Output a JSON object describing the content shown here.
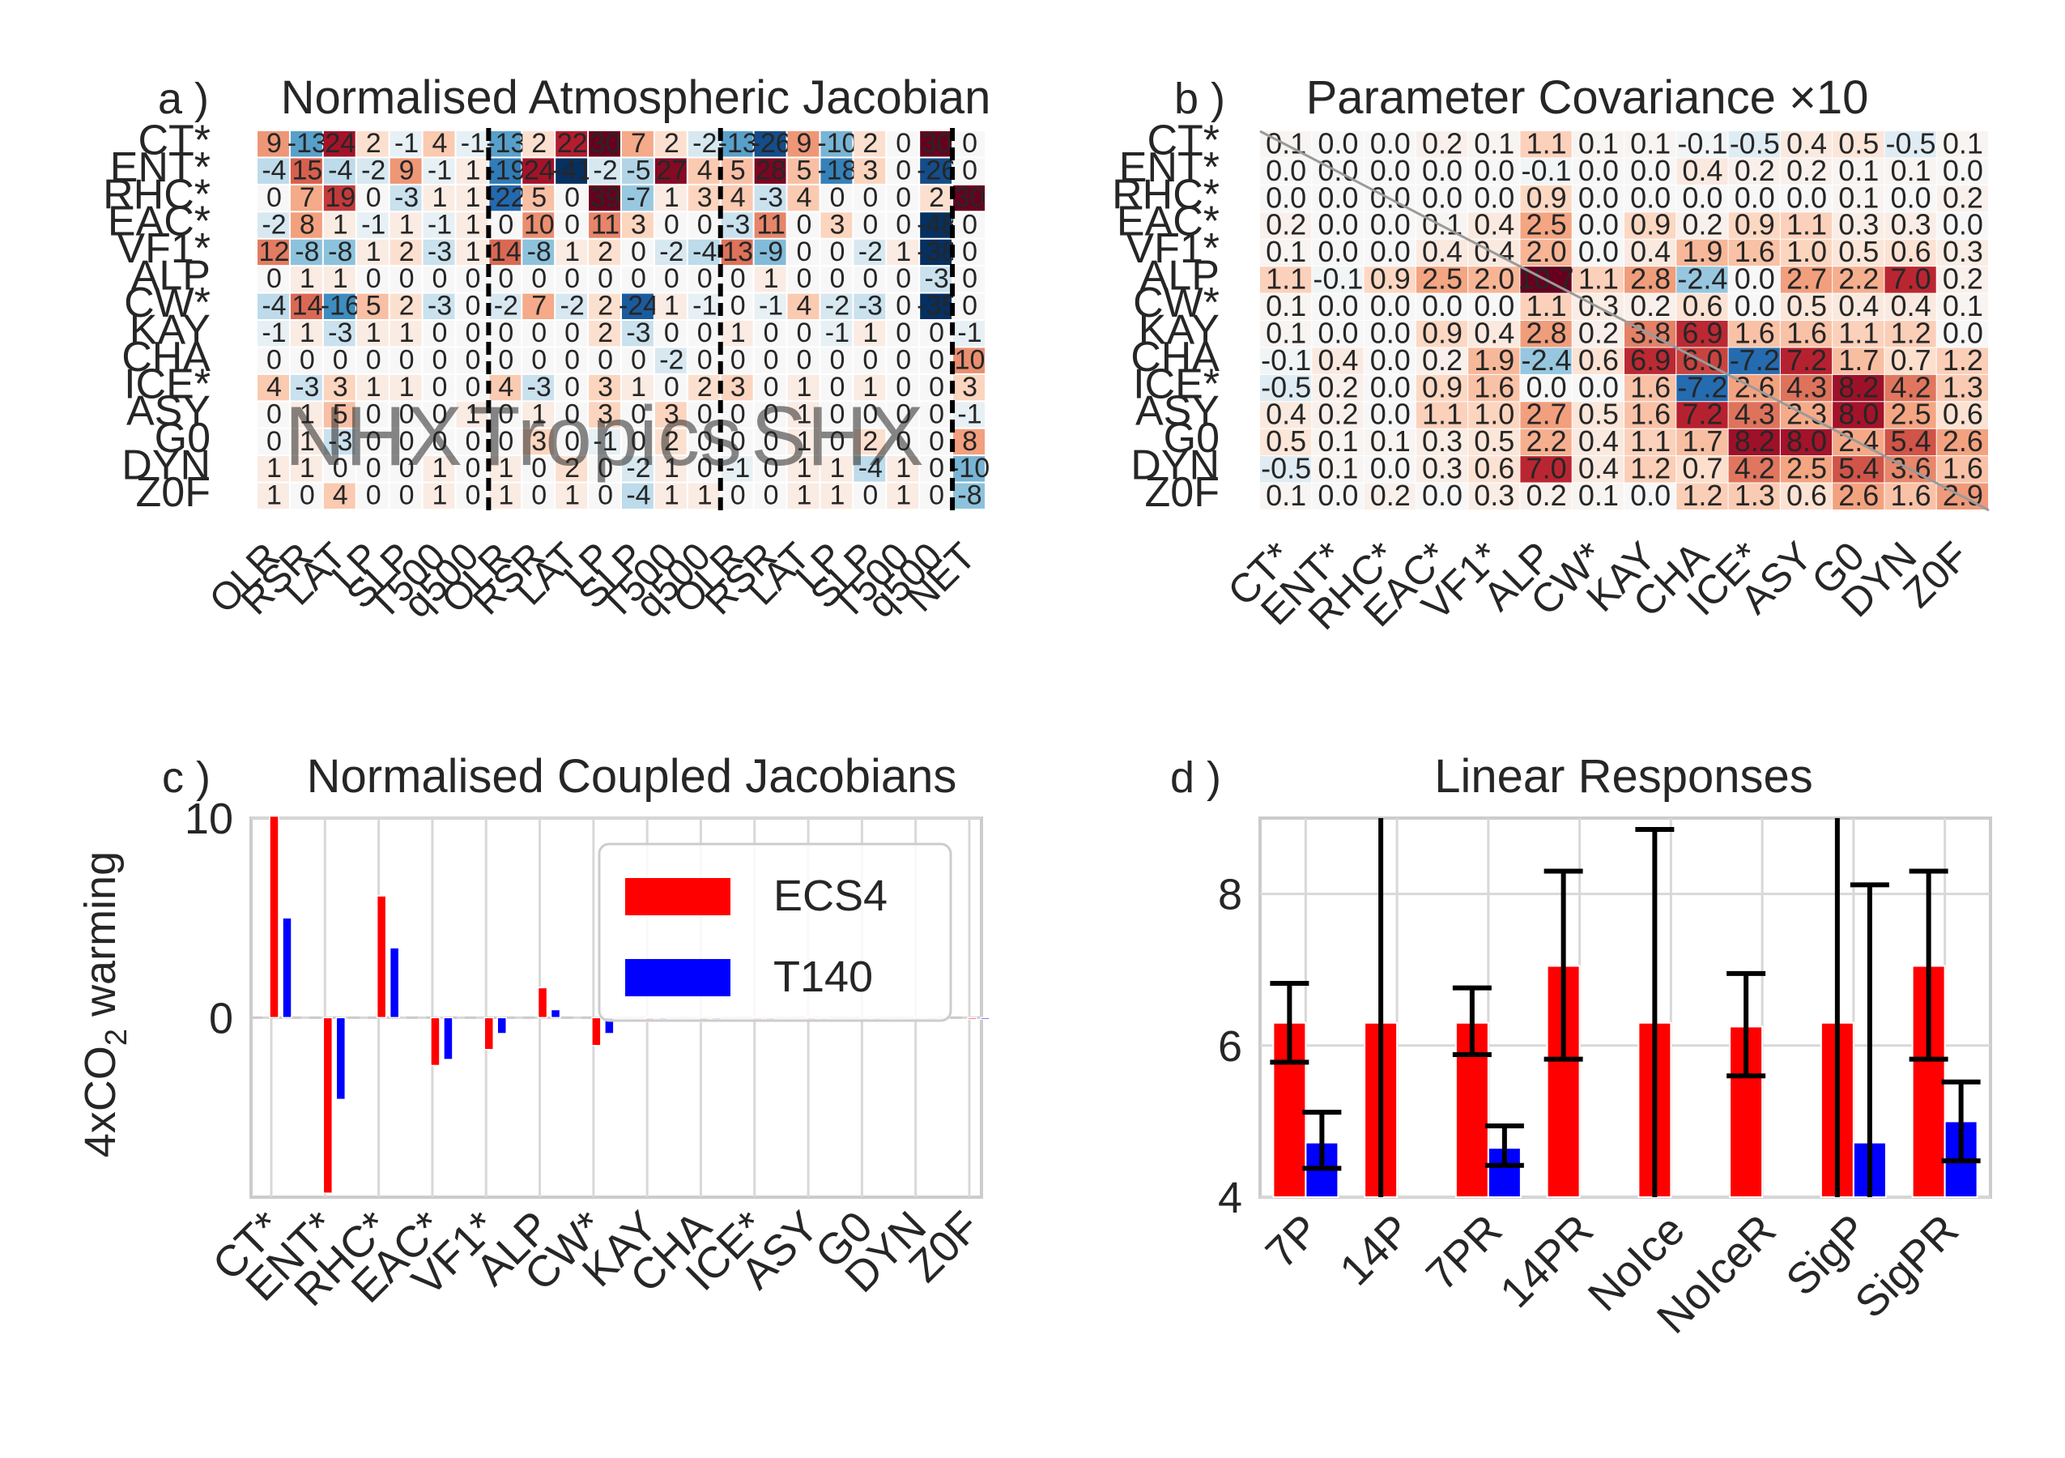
{
  "panels": {
    "a": {
      "letter": "a )",
      "title": "Normalised Atmospheric Jacobian",
      "row_labels": [
        "CT*",
        "ENT*",
        "RHC*",
        "EAC*",
        "VF1*",
        "ALP",
        "CW*",
        "KAY",
        "CHA",
        "ICE*",
        "ASY",
        "G0",
        "DYN",
        "Z0F"
      ],
      "col_labels": [
        "OLR",
        "RSR",
        "LAT",
        "LP",
        "SLP",
        "T500",
        "q500",
        "OLR",
        "RSR",
        "LAT",
        "LP",
        "SLP",
        "T500",
        "q500",
        "OLR",
        "RSR",
        "LAT",
        "LP",
        "SLP",
        "T500",
        "q500",
        "NET"
      ],
      "region_labels": [
        "NHX",
        "Tropics",
        "SHX"
      ],
      "values": [
        [
          9,
          -13,
          24,
          2,
          -1,
          4,
          -1,
          -13,
          2,
          22,
          30,
          7,
          2,
          -2,
          -13,
          -26,
          9,
          -10,
          2,
          0,
          30,
          0
        ],
        [
          -4,
          15,
          -4,
          -2,
          9,
          -1,
          1,
          -19,
          24,
          -41,
          -2,
          -5,
          27,
          4,
          5,
          28,
          5,
          -18,
          3,
          0,
          -26,
          0
        ],
        [
          0,
          7,
          19,
          0,
          -3,
          1,
          1,
          -22,
          5,
          0,
          39,
          -7,
          1,
          3,
          4,
          -3,
          4,
          0,
          0,
          0,
          2,
          30
        ],
        [
          -2,
          8,
          1,
          -1,
          1,
          -1,
          1,
          0,
          10,
          0,
          11,
          3,
          0,
          0,
          -3,
          11,
          0,
          3,
          0,
          0,
          -48,
          0
        ],
        [
          12,
          -8,
          -8,
          1,
          2,
          -3,
          1,
          14,
          -8,
          1,
          2,
          0,
          -2,
          -4,
          13,
          -9,
          0,
          0,
          -2,
          1,
          -38,
          0
        ],
        [
          0,
          1,
          1,
          0,
          0,
          0,
          0,
          0,
          0,
          0,
          0,
          0,
          0,
          0,
          0,
          1,
          0,
          0,
          0,
          0,
          -3,
          0
        ],
        [
          -4,
          14,
          -16,
          5,
          2,
          -3,
          0,
          -2,
          7,
          -2,
          2,
          -24,
          1,
          -1,
          0,
          -1,
          4,
          -2,
          -3,
          0,
          -35,
          0
        ],
        [
          -1,
          1,
          -3,
          1,
          1,
          0,
          0,
          0,
          0,
          0,
          2,
          -3,
          0,
          0,
          1,
          0,
          0,
          -1,
          1,
          0,
          0,
          -1
        ],
        [
          0,
          0,
          0,
          0,
          0,
          0,
          0,
          0,
          0,
          0,
          0,
          0,
          -2,
          0,
          0,
          0,
          0,
          0,
          0,
          0,
          0,
          10
        ],
        [
          4,
          -3,
          3,
          1,
          1,
          0,
          0,
          4,
          -3,
          0,
          3,
          1,
          0,
          2,
          3,
          0,
          1,
          0,
          1,
          0,
          0,
          3
        ],
        [
          0,
          1,
          5,
          0,
          0,
          0,
          1,
          0,
          1,
          0,
          3,
          0,
          3,
          0,
          0,
          0,
          1,
          0,
          0,
          0,
          0,
          -1
        ],
        [
          0,
          1,
          -3,
          0,
          0,
          0,
          0,
          0,
          3,
          0,
          -1,
          0,
          2,
          0,
          0,
          0,
          1,
          0,
          2,
          0,
          0,
          8
        ],
        [
          1,
          1,
          0,
          0,
          0,
          1,
          0,
          1,
          0,
          2,
          0,
          -2,
          1,
          0,
          -1,
          0,
          1,
          1,
          -4,
          1,
          0,
          -10
        ],
        [
          1,
          0,
          4,
          0,
          0,
          1,
          0,
          1,
          0,
          1,
          0,
          -4,
          1,
          1,
          0,
          0,
          1,
          1,
          0,
          1,
          0,
          -8
        ]
      ]
    },
    "b": {
      "letter": "b )",
      "title": "Parameter Covariance ×10",
      "labels": [
        "CT*",
        "ENT*",
        "RHC*",
        "EAC*",
        "VF1*",
        "ALP",
        "CW*",
        "KAY",
        "CHA",
        "ICE*",
        "ASY",
        "G0",
        "DYN",
        "Z0F"
      ],
      "values": [
        [
          0.1,
          0.0,
          0.0,
          0.2,
          0.1,
          1.1,
          0.1,
          0.1,
          -0.1,
          -0.5,
          0.4,
          0.5,
          -0.5,
          0.1
        ],
        [
          -0.0,
          0.0,
          0.0,
          0.0,
          0.0,
          -0.1,
          0.0,
          0.0,
          0.4,
          0.2,
          0.2,
          0.1,
          0.1,
          0.0
        ],
        [
          -0.0,
          0.0,
          0.0,
          0.0,
          -0.0,
          0.9,
          0.0,
          0.0,
          0.0,
          0.0,
          0.0,
          0.1,
          0.0,
          0.2
        ],
        [
          0.2,
          0.0,
          0.0,
          0.1,
          0.4,
          2.5,
          -0.0,
          0.9,
          0.2,
          0.9,
          1.1,
          0.3,
          0.3,
          0.0
        ],
        [
          0.1,
          0.0,
          0.0,
          0.4,
          0.4,
          2.0,
          0.0,
          0.4,
          1.9,
          1.6,
          1.0,
          0.5,
          0.6,
          0.3
        ],
        [
          1.1,
          -0.1,
          0.9,
          2.5,
          2.0,
          10.7,
          1.1,
          2.8,
          -2.4,
          -0.0,
          2.7,
          2.2,
          7.0,
          0.2
        ],
        [
          0.1,
          0.0,
          0.0,
          0.0,
          0.0,
          1.1,
          0.3,
          0.2,
          0.6,
          0.0,
          0.5,
          0.4,
          0.4,
          0.1
        ],
        [
          0.1,
          0.0,
          0.0,
          0.9,
          0.4,
          2.8,
          0.2,
          3.8,
          6.9,
          1.6,
          1.6,
          1.1,
          1.2,
          0.0
        ],
        [
          -0.1,
          0.4,
          0.0,
          0.2,
          1.9,
          -2.4,
          0.6,
          6.9,
          6.0,
          -7.2,
          7.2,
          1.7,
          0.7,
          1.2
        ],
        [
          -0.5,
          0.2,
          0.0,
          0.9,
          1.6,
          -0.0,
          0.0,
          1.6,
          -7.2,
          2.6,
          4.3,
          8.2,
          4.2,
          1.3
        ],
        [
          0.4,
          0.2,
          0.0,
          1.1,
          1.0,
          2.7,
          0.5,
          1.6,
          7.2,
          4.3,
          2.3,
          8.0,
          2.5,
          0.6
        ],
        [
          0.5,
          0.1,
          0.1,
          0.3,
          0.5,
          2.2,
          0.4,
          1.1,
          1.7,
          8.2,
          8.0,
          2.4,
          5.4,
          2.6
        ],
        [
          -0.5,
          0.1,
          0.0,
          0.3,
          0.6,
          7.0,
          0.4,
          1.2,
          0.7,
          4.2,
          2.5,
          5.4,
          3.6,
          1.6
        ],
        [
          0.1,
          0.0,
          0.2,
          0.0,
          0.3,
          0.2,
          0.1,
          0.0,
          1.2,
          1.3,
          0.6,
          2.6,
          1.6,
          2.9
        ]
      ]
    },
    "c": {
      "letter": "c )",
      "title": "Normalised Coupled Jacobians",
      "ylabel_main": "4xCO",
      "ylabel_sub": "2",
      "ylabel_rest": " warming",
      "yticks": [
        0,
        10
      ],
      "ylim": [
        -9,
        10
      ]
    },
    "d": {
      "letter": "d )",
      "title": "Linear Responses",
      "yticks": [
        4,
        6,
        8
      ],
      "ylim": [
        4,
        9
      ]
    }
  },
  "chart_data": [
    {
      "type": "heatmap",
      "title": "Normalised Atmospheric Jacobian",
      "rows": [
        "CT*",
        "ENT*",
        "RHC*",
        "EAC*",
        "VF1*",
        "ALP",
        "CW*",
        "KAY",
        "CHA",
        "ICE*",
        "ASY",
        "G0",
        "DYN",
        "Z0F"
      ],
      "columns": [
        "OLR",
        "RSR",
        "LAT",
        "LP",
        "SLP",
        "T500",
        "q500",
        "OLR",
        "RSR",
        "LAT",
        "LP",
        "SLP",
        "T500",
        "q500",
        "OLR",
        "RSR",
        "LAT",
        "LP",
        "SLP",
        "T500",
        "q500",
        "NET"
      ],
      "color_scale": "RdBu_r diverging, range -30 to 30"
    },
    {
      "type": "heatmap",
      "title": "Parameter Covariance ×10",
      "rows": [
        "CT*",
        "ENT*",
        "RHC*",
        "EAC*",
        "VF1*",
        "ALP",
        "CW*",
        "KAY",
        "CHA",
        "ICE*",
        "ASY",
        "G0",
        "DYN",
        "Z0F"
      ],
      "columns": [
        "CT*",
        "ENT*",
        "RHC*",
        "EAC*",
        "VF1*",
        "ALP",
        "CW*",
        "KAY",
        "CHA",
        "ICE*",
        "ASY",
        "G0",
        "DYN",
        "Z0F"
      ],
      "color_scale": "RdBu_r diverging, range -10 to 10"
    },
    {
      "type": "bar",
      "title": "Normalised Coupled Jacobians",
      "ylabel": "4xCO2 warming",
      "categories": [
        "CT*",
        "ENT*",
        "RHC*",
        "EAC*",
        "VF1*",
        "ALP",
        "CW*",
        "KAY",
        "CHA",
        "ICE*",
        "ASY",
        "G0",
        "DYN",
        "Z0F"
      ],
      "series": [
        {
          "name": "ECS4",
          "color": "#ff0000",
          "values": [
            10.1,
            -8.8,
            6.1,
            -2.4,
            -1.6,
            1.5,
            -1.4,
            -0.2,
            -0.2,
            -0.1,
            -0.1,
            0,
            0,
            0
          ]
        },
        {
          "name": "T140",
          "color": "#0000ff",
          "values": [
            5.0,
            -4.1,
            3.5,
            -2.1,
            -0.8,
            0.4,
            -0.8,
            -0.1,
            -0.1,
            -0.1,
            0,
            0,
            0,
            0
          ]
        }
      ],
      "ylim": [
        -9,
        10
      ],
      "grid": true,
      "legend": "top-right"
    },
    {
      "type": "bar",
      "title": "Linear Responses",
      "categories": [
        "7P",
        "14P",
        "7PR",
        "14PR",
        "NoIce",
        "NoIceR",
        "SigP",
        "SigPR"
      ],
      "series": [
        {
          "name": "ECS4",
          "color": "#ff0000",
          "values": [
            6.3,
            6.3,
            6.3,
            7.05,
            6.3,
            6.25,
            6.3,
            7.05
          ],
          "err_low": [
            5.78,
            3.9,
            5.88,
            5.82,
            3.9,
            5.6,
            3.9,
            5.82
          ],
          "err_high": [
            6.82,
            9.1,
            6.76,
            8.3,
            8.85,
            6.95,
            9.1,
            8.3
          ]
        },
        {
          "name": "T140",
          "color": "#0000ff",
          "values": [
            4.72,
            null,
            4.65,
            null,
            null,
            null,
            4.72,
            5.0
          ],
          "err_low": [
            4.38,
            null,
            4.42,
            null,
            null,
            null,
            3.9,
            4.48
          ],
          "err_high": [
            5.12,
            null,
            4.94,
            null,
            null,
            null,
            8.12,
            5.52
          ]
        }
      ],
      "ylim": [
        4,
        9
      ],
      "grid": true
    }
  ]
}
